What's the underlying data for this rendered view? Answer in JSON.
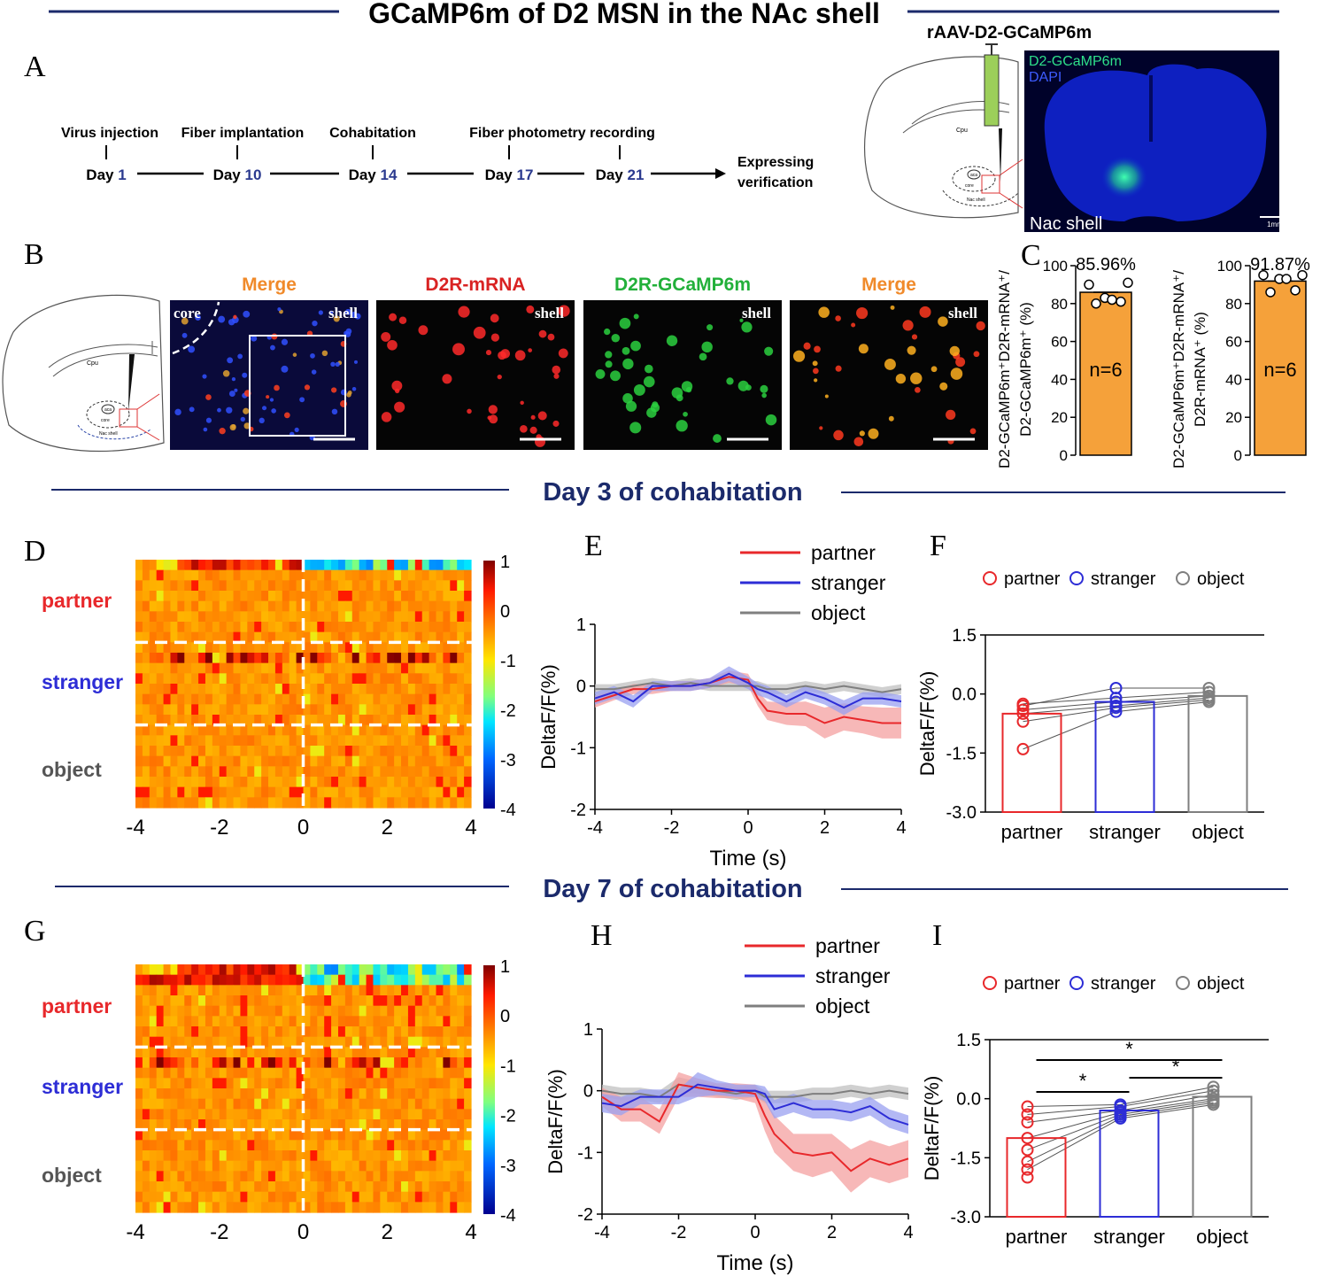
{
  "title": "GCaMP6m of D2 MSN in the NAc shell",
  "colors": {
    "partner": "#e8282b",
    "stranger": "#2d2dd6",
    "object": "#7f7f7f",
    "navy": "#1b2a6b",
    "orange": "#f5a13a",
    "merge": "#f08a2a",
    "mrna": "#d92323",
    "gcamp": "#22b03a"
  },
  "panelA": {
    "label": "A",
    "timeline": [
      {
        "event": "Virus injection",
        "day": "Day",
        "num": "1"
      },
      {
        "event": "Fiber implantation",
        "day": "Day",
        "num": "10"
      },
      {
        "event": "Cohabitation",
        "day": "Day",
        "num": "14"
      },
      {
        "event": "Fiber photometry recording",
        "day": "Day",
        "num": "17"
      },
      {
        "event": "",
        "day": "Day",
        "num": "21"
      }
    ],
    "end_label_1": "Expressing",
    "end_label_2": "verification",
    "virus": "rAAV-D2-GCaMP6m",
    "atlas": {
      "cpu": "Cpu",
      "aca": "aca",
      "core": "core",
      "shell": "Nac shell"
    },
    "micro": {
      "legend1": "D2-GCaMP6m",
      "legend2": "DAPI",
      "region": "Nac shell",
      "scale": "1mm"
    }
  },
  "panelB": {
    "label": "B",
    "images": [
      {
        "title": "Merge",
        "tags": [
          "core",
          "shell"
        ]
      },
      {
        "title": "D2R-mRNA",
        "tags": [
          "shell"
        ]
      },
      {
        "title": "D2R-GCaMP6m",
        "tags": [
          "shell"
        ]
      },
      {
        "title": "Merge",
        "tags": [
          "shell"
        ]
      }
    ],
    "atlas": {
      "cpu": "Cpu",
      "aca": "aca",
      "core": "core",
      "shell": "Nac shell"
    }
  },
  "panelC": {
    "label": "C",
    "charts": [
      {
        "ylabel1": "D2-GCaMP6m⁺D2R-mRNA⁺/",
        "ylabel2": "D2-GCaMP6m⁺ (%)",
        "value": 85.96,
        "value_text": "85.96%",
        "n_text": "n=6",
        "points": [
          90,
          83,
          81,
          80,
          82,
          91
        ],
        "yticks": [
          "0",
          "20",
          "40",
          "60",
          "80",
          "100"
        ]
      },
      {
        "ylabel1": "D2-GCaMP6m⁺D2R-mRNA⁺/",
        "ylabel2": "D2R-mRNA⁺ (%)",
        "value": 91.87,
        "value_text": "91.87%",
        "n_text": "n=6",
        "points": [
          95,
          93,
          87,
          86,
          93,
          95
        ],
        "yticks": [
          "0",
          "20",
          "40",
          "60",
          "80",
          "100"
        ]
      }
    ]
  },
  "section_day3": "Day 3 of cohabitation",
  "section_day7": "Day 7 of cohabitation",
  "chart_data": [
    {
      "panel": "D",
      "type": "heatmap",
      "title": "",
      "group_labels": [
        "partner",
        "stranger",
        "object"
      ],
      "xticks": [
        "-4",
        "-2",
        "0",
        "2",
        "4"
      ],
      "x_range": [
        -4,
        4
      ],
      "colorbar_ticks": [
        "1",
        "0",
        "-1",
        "-2",
        "-3",
        "-4"
      ],
      "color_range": [
        -4,
        1
      ],
      "rows_per_group": [
        8,
        8,
        8
      ],
      "seed": 3
    },
    {
      "panel": "E",
      "type": "line",
      "title": "",
      "xlabel": "Time (s)",
      "ylabel": "DeltaF/F(%)",
      "xlim": [
        -4,
        4
      ],
      "ylim": [
        -2,
        1
      ],
      "xticks": [
        "-4",
        "-2",
        "0",
        "2",
        "4"
      ],
      "yticks": [
        "-2",
        "-1",
        "0",
        "1"
      ],
      "series": [
        {
          "name": "partner",
          "x": [
            -4,
            -3.5,
            -3,
            -2.5,
            -2,
            -1.5,
            -1,
            -0.5,
            0,
            0.25,
            0.5,
            1,
            1.5,
            2,
            2.5,
            3,
            3.5,
            4
          ],
          "values": [
            -0.25,
            -0.15,
            -0.05,
            -0.05,
            0,
            0,
            0.05,
            0.15,
            0.1,
            -0.2,
            -0.4,
            -0.45,
            -0.45,
            -0.6,
            -0.5,
            -0.55,
            -0.6,
            -0.6
          ],
          "err": [
            0.1,
            0.08,
            0.08,
            0.08,
            0.08,
            0.08,
            0.08,
            0.1,
            0.1,
            0.12,
            0.15,
            0.18,
            0.2,
            0.25,
            0.22,
            0.22,
            0.25,
            0.25
          ]
        },
        {
          "name": "stranger",
          "x": [
            -4,
            -3.5,
            -3,
            -2.5,
            -2,
            -1.5,
            -1,
            -0.5,
            0,
            0.25,
            0.5,
            1,
            1.5,
            2,
            2.5,
            3,
            3.5,
            4
          ],
          "values": [
            -0.2,
            -0.1,
            -0.25,
            0,
            0,
            0,
            0.05,
            0.2,
            0.05,
            -0.05,
            -0.1,
            -0.25,
            -0.1,
            -0.2,
            -0.35,
            -0.2,
            -0.2,
            -0.25
          ],
          "err": [
            0.1,
            0.1,
            0.1,
            0.08,
            0.08,
            0.08,
            0.08,
            0.12,
            0.1,
            0.1,
            0.1,
            0.1,
            0.1,
            0.1,
            0.12,
            0.1,
            0.1,
            0.1
          ]
        },
        {
          "name": "object",
          "x": [
            -4,
            -3.5,
            -3,
            -2.5,
            -2,
            -1.5,
            -1,
            -0.5,
            0,
            0.25,
            0.5,
            1,
            1.5,
            2,
            2.5,
            3,
            3.5,
            4
          ],
          "values": [
            -0.05,
            -0.05,
            0,
            0.05,
            0,
            0.05,
            0,
            0,
            0,
            0,
            -0.05,
            -0.05,
            0,
            -0.05,
            0,
            -0.05,
            -0.1,
            -0.05
          ],
          "err": [
            0.08,
            0.08,
            0.08,
            0.08,
            0.08,
            0.08,
            0.08,
            0.08,
            0.08,
            0.08,
            0.08,
            0.08,
            0.08,
            0.08,
            0.08,
            0.08,
            0.08,
            0.08
          ]
        }
      ]
    },
    {
      "panel": "F",
      "type": "bar",
      "title": "",
      "xlabel": "",
      "ylabel": "DeltaF/F(%)",
      "categories": [
        "partner",
        "stranger",
        "object"
      ],
      "values": [
        -0.5,
        -0.2,
        -0.05
      ],
      "ylim": [
        -3,
        1.5
      ],
      "yticks": [
        "-3.0",
        "-1.5",
        "0.0",
        "1.5"
      ],
      "points": [
        [
          -0.3,
          -0.25,
          -0.4,
          -0.5,
          -0.7,
          -1.4
        ],
        [
          0.15,
          -0.1,
          -0.2,
          -0.3,
          -0.35,
          -0.45
        ],
        [
          0.15,
          0.05,
          -0.05,
          -0.1,
          -0.15,
          -0.2
        ]
      ],
      "legend": [
        "partner",
        "stranger",
        "object"
      ],
      "significance": []
    },
    {
      "panel": "G",
      "type": "heatmap",
      "title": "",
      "group_labels": [
        "partner",
        "stranger",
        "object"
      ],
      "xticks": [
        "-4",
        "-2",
        "0",
        "2",
        "4"
      ],
      "x_range": [
        -4,
        4
      ],
      "colorbar_ticks": [
        "1",
        "0",
        "-1",
        "-2",
        "-3",
        "-4"
      ],
      "color_range": [
        -4,
        1
      ],
      "rows_per_group": [
        8,
        8,
        8
      ],
      "seed": 7
    },
    {
      "panel": "H",
      "type": "line",
      "title": "",
      "xlabel": "Time (s)",
      "ylabel": "DeltaF/F(%)",
      "xlim": [
        -4,
        4
      ],
      "ylim": [
        -2,
        1
      ],
      "xticks": [
        "-4",
        "-2",
        "0",
        "2",
        "4"
      ],
      "yticks": [
        "-2",
        "-1",
        "0",
        "1"
      ],
      "series": [
        {
          "name": "partner",
          "x": [
            -4,
            -3.5,
            -3,
            -2.5,
            -2,
            -1.5,
            -1,
            -0.5,
            0,
            0.25,
            0.5,
            1,
            1.5,
            2,
            2.5,
            3,
            3.5,
            4
          ],
          "values": [
            -0.1,
            -0.3,
            -0.3,
            -0.5,
            0.1,
            0.05,
            0,
            0,
            -0.05,
            -0.4,
            -0.7,
            -1.0,
            -1.05,
            -1.0,
            -1.3,
            -1.1,
            -1.2,
            -1.1
          ],
          "err": [
            0.15,
            0.2,
            0.2,
            0.2,
            0.2,
            0.15,
            0.12,
            0.12,
            0.15,
            0.25,
            0.3,
            0.3,
            0.35,
            0.3,
            0.35,
            0.3,
            0.3,
            0.3
          ]
        },
        {
          "name": "stranger",
          "x": [
            -4,
            -3.5,
            -3,
            -2.5,
            -2,
            -1.5,
            -1,
            -0.5,
            0,
            0.25,
            0.5,
            1,
            1.5,
            2,
            2.5,
            3,
            3.5,
            4
          ],
          "values": [
            -0.2,
            -0.25,
            -0.1,
            -0.1,
            -0.1,
            0.1,
            0.05,
            0,
            0,
            -0.05,
            -0.3,
            -0.2,
            -0.3,
            -0.3,
            -0.35,
            -0.25,
            -0.45,
            -0.55
          ],
          "err": [
            0.15,
            0.15,
            0.12,
            0.12,
            0.12,
            0.2,
            0.12,
            0.1,
            0.1,
            0.12,
            0.15,
            0.15,
            0.15,
            0.15,
            0.15,
            0.15,
            0.15,
            0.15
          ]
        },
        {
          "name": "object",
          "x": [
            -4,
            -3.5,
            -3,
            -2.5,
            -2,
            -1.5,
            -1,
            -0.5,
            0,
            0.25,
            0.5,
            1,
            1.5,
            2,
            2.5,
            3,
            3.5,
            4
          ],
          "values": [
            0,
            -0.05,
            -0.05,
            -0.1,
            0.1,
            0.05,
            0,
            -0.05,
            0,
            -0.1,
            -0.1,
            -0.1,
            -0.05,
            -0.05,
            0,
            -0.05,
            0,
            -0.05
          ],
          "err": [
            0.1,
            0.1,
            0.1,
            0.1,
            0.12,
            0.1,
            0.1,
            0.1,
            0.1,
            0.1,
            0.1,
            0.1,
            0.1,
            0.1,
            0.1,
            0.1,
            0.1,
            0.1
          ]
        }
      ]
    },
    {
      "panel": "I",
      "type": "bar",
      "title": "",
      "xlabel": "",
      "ylabel": "DeltaF/F(%)",
      "categories": [
        "partner",
        "stranger",
        "object"
      ],
      "values": [
        -1.0,
        -0.3,
        0.05
      ],
      "ylim": [
        -3,
        1.5
      ],
      "yticks": [
        "-3.0",
        "-1.5",
        "0.0",
        "1.5"
      ],
      "points": [
        [
          -0.2,
          -0.4,
          -0.6,
          -1.0,
          -1.3,
          -1.6,
          -1.8,
          -2.0
        ],
        [
          -0.15,
          -0.2,
          -0.3,
          -0.35,
          -0.4,
          -0.45,
          -0.5
        ],
        [
          0.3,
          0.2,
          0.1,
          0.0,
          -0.05,
          -0.1,
          -0.15
        ]
      ],
      "legend": [
        "partner",
        "stranger",
        "object"
      ],
      "significance": [
        {
          "pair": [
            "partner",
            "object"
          ],
          "label": "*"
        },
        {
          "pair": [
            "partner",
            "stranger"
          ],
          "label": "*"
        },
        {
          "pair": [
            "stranger",
            "object"
          ],
          "label": "*"
        }
      ]
    }
  ]
}
